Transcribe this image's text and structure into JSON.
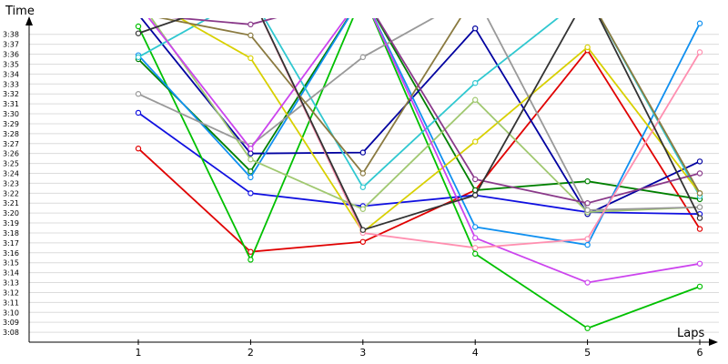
{
  "chart_data": {
    "type": "line",
    "title": "",
    "ylabel": "Time",
    "xlabel": "Laps",
    "x": [
      1,
      2,
      3,
      4,
      5,
      6
    ],
    "y_ticks": [
      "3:08",
      "3:09",
      "3:10",
      "3:11",
      "3:12",
      "3:13",
      "3:14",
      "3:15",
      "3:16",
      "3:17",
      "3:18",
      "3:19",
      "3:20",
      "3:21",
      "3:22",
      "3:23",
      "3:24",
      "3:25",
      "3:26",
      "3:27",
      "3:28",
      "3:29",
      "3:30",
      "3:31",
      "3:32",
      "3:33",
      "3:34",
      "3:35",
      "3:36",
      "3:37",
      "3:38"
    ],
    "ylim": [
      "3:07",
      "3:41"
    ],
    "grid": true,
    "legend": "none",
    "series": [
      {
        "color": "#e00000",
        "values": [
          "3:26.5",
          "3:16.1",
          "3:17.1",
          "3:22.3",
          "3:36.4",
          "3:18.4"
        ]
      },
      {
        "color": "#1010e0",
        "values": [
          "3:30.1",
          "3:22.0",
          "3:20.7",
          "3:21.8",
          "3:20.1",
          "3:19.9"
        ]
      },
      {
        "color": "#00c000",
        "values": [
          "3:38.8",
          "3:15.3",
          "3:42.0",
          "3:15.9",
          "3:08.4",
          "3:12.6"
        ]
      },
      {
        "color": "#008000",
        "values": [
          "3:35.5",
          "3:24.2",
          "3:42.0",
          "3:22.3",
          "3:23.2",
          "3:21.4"
        ]
      },
      {
        "color": "#0000a0",
        "values": [
          "3:40.0",
          "3:26.0",
          "3:26.1",
          "3:38.6",
          "3:19.9",
          "3:25.2"
        ]
      },
      {
        "color": "#1090f0",
        "values": [
          "3:35.9",
          "3:23.6",
          "3:42.0",
          "3:18.6",
          "3:16.8",
          "3:39.1"
        ]
      },
      {
        "color": "#30c8d0",
        "values": [
          "3:35.7",
          "3:42.0",
          "3:22.6",
          "3:33.1",
          "3:42.0",
          "3:21.7"
        ]
      },
      {
        "color": "#d8d000",
        "values": [
          "3:42.0",
          "3:35.6",
          "3:18.1",
          "3:27.2",
          "3:36.7",
          "3:22.0"
        ]
      },
      {
        "color": "#a0c870",
        "values": [
          "3:41.5",
          "3:25.4",
          "3:20.4",
          "3:31.4",
          "3:20.1",
          "3:20.6"
        ]
      },
      {
        "color": "#999999",
        "values": [
          "3:32.0",
          "3:26.8",
          "3:35.7",
          "3:42.0",
          "3:20.3",
          "3:20.6"
        ]
      },
      {
        "color": "#8a7a40",
        "values": [
          "3:40.1",
          "3:37.9",
          "3:24.0",
          "3:42.0",
          "3:42.0",
          "3:22.0"
        ]
      },
      {
        "color": "#8a3a8a",
        "values": [
          "3:40.0",
          "3:39.0",
          "3:42.0",
          "3:23.4",
          "3:21.0",
          "3:24.0"
        ]
      },
      {
        "color": "#cc44ee",
        "values": [
          "3:41.0",
          "3:26.5",
          "3:42.0",
          "3:17.5",
          "3:13.0",
          "3:14.9"
        ]
      },
      {
        "color": "#ff8fb0",
        "values": [
          "3:40.6",
          "3:42.0",
          "3:18.0",
          "3:16.5",
          "3:17.4",
          "3:36.2"
        ]
      },
      {
        "color": "#333333",
        "values": [
          "3:38.1",
          "3:42.0",
          "3:18.3",
          "3:21.8",
          "3:42.0",
          "3:19.5"
        ]
      }
    ]
  }
}
